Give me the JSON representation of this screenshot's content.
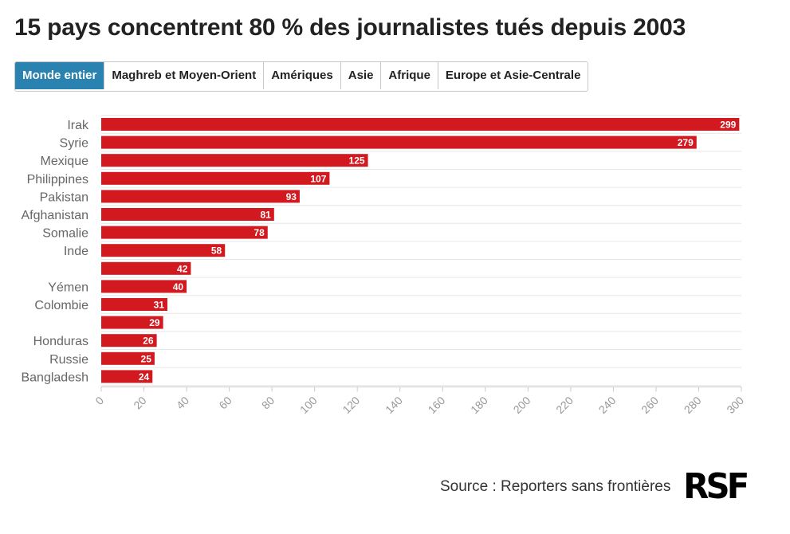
{
  "title": "15 pays concentrent 80 % des journalistes tués depuis 2003",
  "tabs": [
    {
      "label": "Monde entier",
      "active": true
    },
    {
      "label": "Maghreb et Moyen-Orient",
      "active": false
    },
    {
      "label": "Amériques",
      "active": false
    },
    {
      "label": "Asie",
      "active": false
    },
    {
      "label": "Afrique",
      "active": false
    },
    {
      "label": "Europe et Asie-Centrale",
      "active": false
    }
  ],
  "colors": {
    "bar": "#d1191f",
    "tab_active": "#2a82b0"
  },
  "chart_data": {
    "type": "bar",
    "orientation": "horizontal",
    "categories": [
      "Irak",
      "Syrie",
      "Mexique",
      "Philippines",
      "Pakistan",
      "Afghanistan",
      "Somalie",
      "Inde",
      "",
      "Yémen",
      "Colombie",
      "",
      "Honduras",
      "Russie",
      "Bangladesh"
    ],
    "values": [
      299,
      279,
      125,
      107,
      93,
      81,
      78,
      58,
      42,
      40,
      31,
      29,
      26,
      25,
      24
    ],
    "xlim": [
      0,
      300
    ],
    "xticks": [
      "0",
      "20",
      "40",
      "60",
      "80",
      "100",
      "120",
      "140",
      "160",
      "180",
      "200",
      "220",
      "240",
      "260",
      "280",
      "300"
    ],
    "grid": true,
    "data_labels": true
  },
  "footer": {
    "source": "Source : Reporters sans frontières",
    "logo": "RSF"
  }
}
